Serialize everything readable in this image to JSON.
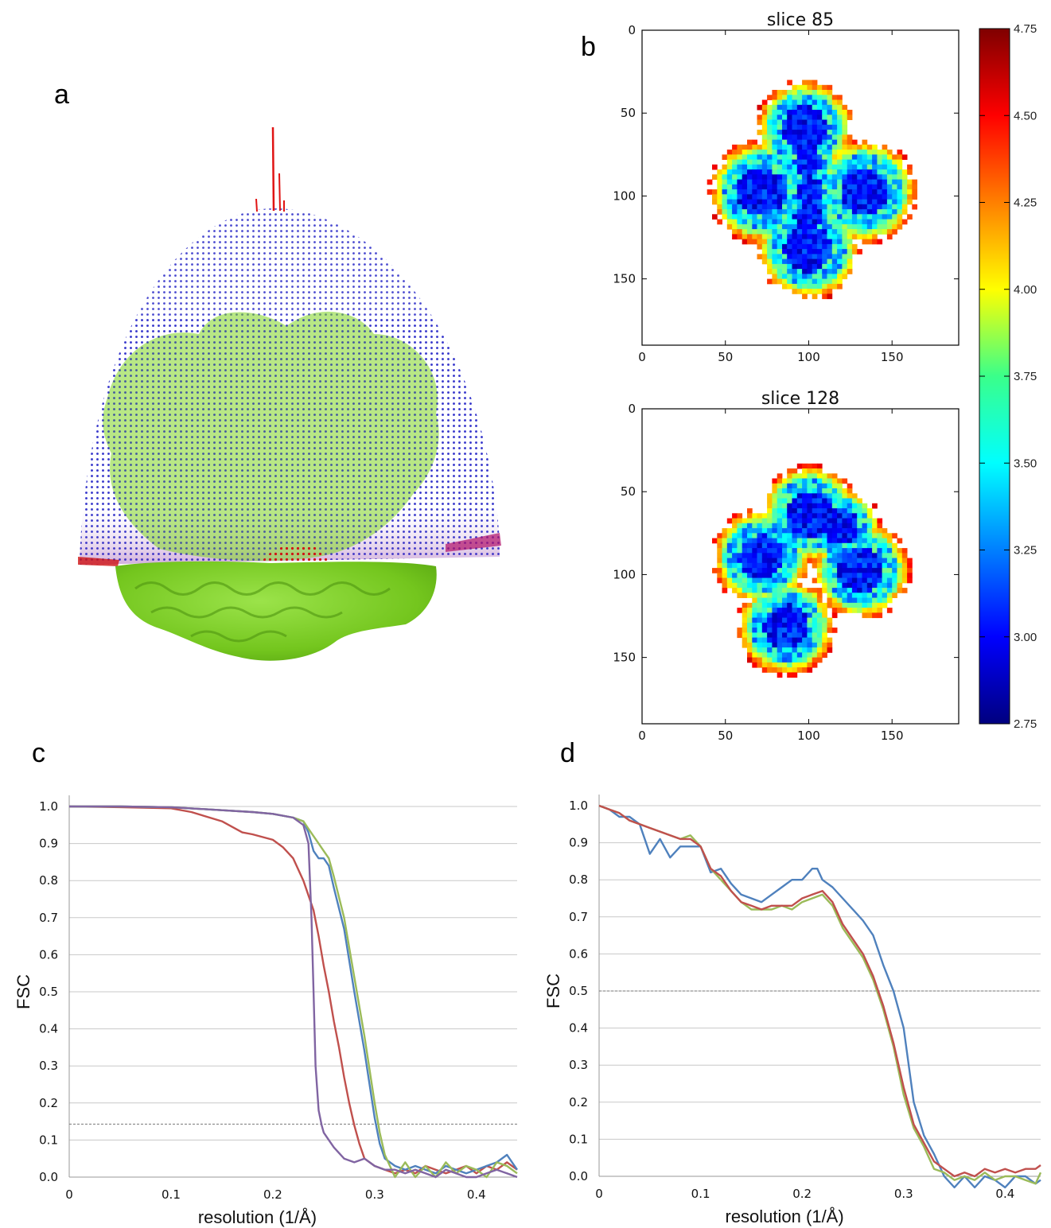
{
  "panels": {
    "a": "a",
    "b": "b",
    "c": "c",
    "d": "d"
  },
  "colors": {
    "dome_blue": "#2a2ac8",
    "dome_red": "#e01414",
    "protein_green": "#7ed321",
    "red_curve": "#c0504d",
    "blue_curve": "#4f81bd",
    "green_curve": "#9bbb59",
    "purple_curve": "#8064a2",
    "grid": "#c8c8c8",
    "threshold": "#777777"
  },
  "chart_data": [
    {
      "id": "slice-85",
      "type": "heatmap",
      "title": "slice 85",
      "xlim": [
        0,
        190
      ],
      "ylim": [
        190,
        0
      ],
      "x_ticks": [
        "0",
        "50",
        "100",
        "150"
      ],
      "y_ticks": [
        "0",
        "50",
        "100",
        "150"
      ]
    },
    {
      "id": "slice-128",
      "type": "heatmap",
      "title": "slice 128",
      "xlim": [
        0,
        190
      ],
      "ylim": [
        190,
        0
      ],
      "x_ticks": [
        "0",
        "50",
        "100",
        "150"
      ],
      "y_ticks": [
        "0",
        "50",
        "100",
        "150"
      ]
    },
    {
      "id": "colorbar",
      "type": "colorbar",
      "range": [
        2.75,
        4.75
      ],
      "ticks": [
        "4.75",
        "4.50",
        "4.25",
        "4.00",
        "3.75",
        "3.50",
        "3.25",
        "3.00",
        "2.75"
      ],
      "colormap": "jet"
    },
    {
      "id": "fsc-c",
      "type": "line",
      "xlabel": "resolution (1/Å)",
      "ylabel": "FSC",
      "xlim": [
        0,
        0.44
      ],
      "ylim": [
        0,
        1.0
      ],
      "x_ticks": [
        "0",
        "0.1",
        "0.2",
        "0.3",
        "0.4"
      ],
      "y_ticks": [
        "0.0",
        "0.1",
        "0.2",
        "0.3",
        "0.4",
        "0.5",
        "0.6",
        "0.7",
        "0.8",
        "0.9",
        "1.0"
      ],
      "threshold": 0.143,
      "grid": true,
      "series": [
        {
          "color": "#c0504d",
          "x": [
            0,
            0.05,
            0.1,
            0.12,
            0.15,
            0.17,
            0.18,
            0.2,
            0.21,
            0.22,
            0.23,
            0.235,
            0.24,
            0.245,
            0.25,
            0.255,
            0.26,
            0.265,
            0.27,
            0.275,
            0.28,
            0.285,
            0.29,
            0.3,
            0.31,
            0.32,
            0.33,
            0.34,
            0.35,
            0.36,
            0.37,
            0.38,
            0.39,
            0.4,
            0.41,
            0.42,
            0.43,
            0.44
          ],
          "y": [
            1.0,
            0.998,
            0.995,
            0.985,
            0.96,
            0.93,
            0.925,
            0.91,
            0.89,
            0.86,
            0.8,
            0.76,
            0.72,
            0.65,
            0.57,
            0.5,
            0.42,
            0.35,
            0.27,
            0.2,
            0.14,
            0.09,
            0.05,
            0.03,
            0.02,
            0.01,
            0.02,
            0.01,
            0.03,
            0.02,
            0.01,
            0.02,
            0.03,
            0.01,
            0.03,
            0.02,
            0.04,
            0.02
          ]
        },
        {
          "color": "#4f81bd",
          "x": [
            0,
            0.05,
            0.1,
            0.15,
            0.18,
            0.2,
            0.22,
            0.23,
            0.235,
            0.24,
            0.245,
            0.25,
            0.255,
            0.26,
            0.27,
            0.28,
            0.29,
            0.295,
            0.3,
            0.305,
            0.31,
            0.32,
            0.33,
            0.34,
            0.35,
            0.36,
            0.37,
            0.38,
            0.39,
            0.4,
            0.41,
            0.42,
            0.43,
            0.44
          ],
          "y": [
            1.0,
            1.0,
            0.998,
            0.99,
            0.985,
            0.98,
            0.97,
            0.96,
            0.93,
            0.88,
            0.86,
            0.86,
            0.84,
            0.78,
            0.67,
            0.5,
            0.34,
            0.25,
            0.16,
            0.09,
            0.05,
            0.03,
            0.02,
            0.03,
            0.02,
            0.01,
            0.03,
            0.02,
            0.01,
            0.02,
            0.03,
            0.04,
            0.06,
            0.02
          ]
        },
        {
          "color": "#9bbb59",
          "x": [
            0,
            0.05,
            0.1,
            0.15,
            0.18,
            0.2,
            0.22,
            0.23,
            0.235,
            0.24,
            0.245,
            0.25,
            0.255,
            0.26,
            0.27,
            0.28,
            0.29,
            0.3,
            0.305,
            0.31,
            0.315,
            0.32,
            0.33,
            0.34,
            0.35,
            0.36,
            0.37,
            0.38,
            0.39,
            0.4,
            0.41,
            0.42,
            0.43,
            0.44
          ],
          "y": [
            1.0,
            1.0,
            0.998,
            0.99,
            0.985,
            0.98,
            0.97,
            0.96,
            0.94,
            0.92,
            0.9,
            0.88,
            0.86,
            0.81,
            0.7,
            0.54,
            0.38,
            0.2,
            0.12,
            0.06,
            0.03,
            0.0,
            0.04,
            0.0,
            0.03,
            0.0,
            0.04,
            0.01,
            0.03,
            0.02,
            0.0,
            0.04,
            0.03,
            0.01
          ]
        },
        {
          "color": "#8064a2",
          "x": [
            0,
            0.05,
            0.1,
            0.15,
            0.18,
            0.2,
            0.22,
            0.23,
            0.235,
            0.238,
            0.24,
            0.242,
            0.245,
            0.248,
            0.25,
            0.255,
            0.26,
            0.27,
            0.28,
            0.29,
            0.3,
            0.31,
            0.32,
            0.33,
            0.34,
            0.35,
            0.36,
            0.37,
            0.38,
            0.39,
            0.4,
            0.41,
            0.42,
            0.43,
            0.44
          ],
          "y": [
            1.0,
            1.0,
            0.998,
            0.99,
            0.985,
            0.98,
            0.97,
            0.95,
            0.9,
            0.7,
            0.5,
            0.3,
            0.18,
            0.14,
            0.12,
            0.1,
            0.08,
            0.05,
            0.04,
            0.05,
            0.03,
            0.02,
            0.02,
            0.01,
            0.02,
            0.01,
            0.0,
            0.02,
            0.01,
            0.0,
            0.0,
            0.01,
            0.02,
            0.01,
            0.0
          ]
        }
      ]
    },
    {
      "id": "fsc-d",
      "type": "line",
      "xlabel": "resolution (1/Å)",
      "ylabel": "FSC",
      "xlim": [
        0,
        0.435
      ],
      "ylim": [
        0,
        1.0
      ],
      "x_ticks": [
        "0",
        "0.1",
        "0.2",
        "0.3",
        "0.4"
      ],
      "y_ticks": [
        "0.0",
        "0.1",
        "0.2",
        "0.3",
        "0.4",
        "0.5",
        "0.6",
        "0.7",
        "0.8",
        "0.9",
        "1.0"
      ],
      "threshold": 0.5,
      "grid": true,
      "series": [
        {
          "color": "#4f81bd",
          "x": [
            0,
            0.01,
            0.02,
            0.03,
            0.04,
            0.05,
            0.06,
            0.07,
            0.08,
            0.09,
            0.1,
            0.11,
            0.12,
            0.13,
            0.14,
            0.15,
            0.16,
            0.17,
            0.18,
            0.19,
            0.2,
            0.21,
            0.215,
            0.22,
            0.23,
            0.24,
            0.25,
            0.26,
            0.27,
            0.28,
            0.29,
            0.3,
            0.31,
            0.32,
            0.33,
            0.34,
            0.35,
            0.36,
            0.37,
            0.38,
            0.39,
            0.4,
            0.41,
            0.42,
            0.43,
            0.435
          ],
          "y": [
            1.0,
            0.99,
            0.97,
            0.97,
            0.95,
            0.87,
            0.91,
            0.86,
            0.89,
            0.89,
            0.89,
            0.82,
            0.83,
            0.79,
            0.76,
            0.75,
            0.74,
            0.76,
            0.78,
            0.8,
            0.8,
            0.83,
            0.83,
            0.8,
            0.78,
            0.75,
            0.72,
            0.69,
            0.65,
            0.57,
            0.5,
            0.4,
            0.2,
            0.11,
            0.06,
            0.0,
            -0.03,
            0.0,
            -0.03,
            0.0,
            -0.01,
            -0.03,
            0.0,
            0.0,
            -0.02,
            -0.01
          ]
        },
        {
          "color": "#9bbb59",
          "x": [
            0,
            0.01,
            0.02,
            0.03,
            0.04,
            0.05,
            0.06,
            0.07,
            0.08,
            0.09,
            0.1,
            0.11,
            0.12,
            0.13,
            0.14,
            0.15,
            0.16,
            0.17,
            0.18,
            0.19,
            0.2,
            0.21,
            0.22,
            0.23,
            0.24,
            0.25,
            0.26,
            0.27,
            0.28,
            0.29,
            0.3,
            0.31,
            0.32,
            0.33,
            0.34,
            0.35,
            0.36,
            0.37,
            0.38,
            0.39,
            0.4,
            0.41,
            0.42,
            0.43,
            0.435
          ],
          "y": [
            1.0,
            0.99,
            0.98,
            0.96,
            0.95,
            0.94,
            0.93,
            0.92,
            0.91,
            0.92,
            0.89,
            0.83,
            0.8,
            0.77,
            0.74,
            0.72,
            0.72,
            0.72,
            0.73,
            0.72,
            0.74,
            0.75,
            0.76,
            0.73,
            0.67,
            0.63,
            0.59,
            0.53,
            0.45,
            0.35,
            0.22,
            0.13,
            0.08,
            0.02,
            0.01,
            -0.01,
            0.0,
            -0.01,
            0.01,
            -0.01,
            0.0,
            0.0,
            -0.01,
            -0.02,
            0.01
          ]
        },
        {
          "color": "#c0504d",
          "x": [
            0,
            0.01,
            0.02,
            0.03,
            0.04,
            0.05,
            0.06,
            0.07,
            0.08,
            0.09,
            0.1,
            0.11,
            0.12,
            0.13,
            0.14,
            0.15,
            0.16,
            0.17,
            0.18,
            0.19,
            0.2,
            0.21,
            0.22,
            0.23,
            0.24,
            0.25,
            0.26,
            0.27,
            0.28,
            0.29,
            0.3,
            0.31,
            0.32,
            0.33,
            0.34,
            0.35,
            0.36,
            0.37,
            0.38,
            0.39,
            0.4,
            0.41,
            0.42,
            0.43,
            0.435
          ],
          "y": [
            1.0,
            0.99,
            0.98,
            0.96,
            0.95,
            0.94,
            0.93,
            0.92,
            0.91,
            0.91,
            0.89,
            0.83,
            0.81,
            0.77,
            0.74,
            0.73,
            0.72,
            0.73,
            0.73,
            0.73,
            0.75,
            0.76,
            0.77,
            0.74,
            0.68,
            0.64,
            0.6,
            0.54,
            0.46,
            0.36,
            0.24,
            0.14,
            0.09,
            0.04,
            0.02,
            0.0,
            0.01,
            0.0,
            0.02,
            0.01,
            0.02,
            0.01,
            0.02,
            0.02,
            0.03
          ]
        }
      ]
    }
  ]
}
